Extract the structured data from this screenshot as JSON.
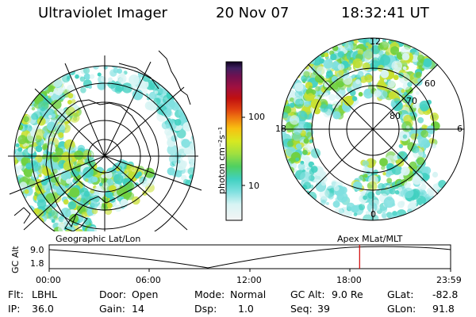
{
  "header": {
    "instrument": "Ultraviolet Imager",
    "date": "20 Nov 07",
    "time": "18:32:41 UT"
  },
  "left_panel": {
    "caption": "Geographic Lat/Lon"
  },
  "right_panel": {
    "caption": "Apex MLat/MLT",
    "mlt_labels": {
      "top": "12",
      "left": "18",
      "right": "6",
      "bottom": "0"
    },
    "lat_labels": [
      "60",
      "70",
      "80"
    ]
  },
  "colorbar": {
    "label": "photon cm⁻²s⁻¹",
    "ticks": [
      "100",
      "10"
    ],
    "scale": "log",
    "colors": [
      "#f4f4f4",
      "#d8f4f4",
      "#80e0e0",
      "#40d0c0",
      "#50d060",
      "#a0e040",
      "#d8e820",
      "#f8c010",
      "#f08010",
      "#e04010",
      "#c01010",
      "#a01040",
      "#701050",
      "#402060",
      "#100020"
    ]
  },
  "timeline": {
    "ylabel": "GC Alt",
    "y_ticks": [
      "9.0",
      "1.8"
    ],
    "x_ticks": [
      "00:00",
      "06:00",
      "12:00",
      "18:00",
      "23:59"
    ],
    "marker_time": "18:32:41",
    "marker_color": "#d00000"
  },
  "info": {
    "filter_label": "Flt:",
    "filter": "LBHL",
    "ip_label": "IP:",
    "ip": "36.0",
    "door_label": "Door:",
    "door": "Open",
    "gain_label": "Gain:",
    "gain": "14",
    "mode_label": "Mode:",
    "mode": "Normal",
    "dsp_label": "Dsp:",
    "dsp": "1.0",
    "gc_alt_label": "GC Alt:",
    "gc_alt": "9.0 Re",
    "seq_label": "Seq:",
    "seq": "39",
    "glat_label": "GLat:",
    "glat": "-82.8",
    "glon_label": "GLon:",
    "glon": "91.8"
  },
  "theme": {
    "emission_low": "#40d0c0",
    "emission_mid": "#6fd040",
    "emission_high": "#c8e030"
  }
}
